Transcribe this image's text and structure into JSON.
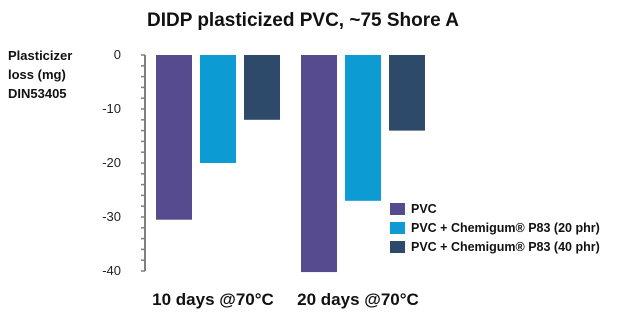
{
  "chart_data": {
    "type": "bar",
    "title": "DIDP plasticized PVC, ~75 Shore A",
    "ylabel_lines": [
      "Plasticizer",
      "loss (mg)",
      "DIN53405"
    ],
    "xlabel": "",
    "categories": [
      "10 days @70°C",
      "20 days @70°C"
    ],
    "series": [
      {
        "name": "PVC",
        "values": [
          -30.5,
          -40.2
        ],
        "color": "#574b8f"
      },
      {
        "name": "PVC + Chemigum® P83 (20 phr)",
        "values": [
          -20,
          -27
        ],
        "color": "#0d9bd3"
      },
      {
        "name": "PVC + Chemigum® P83 (40 phr)",
        "values": [
          -12,
          -14
        ],
        "color": "#2e4a6b"
      }
    ],
    "ylim": [
      -40,
      0
    ],
    "yticks": [
      0,
      -10,
      -20,
      -30,
      -40
    ],
    "legend_position": "bottom-right",
    "grid": false
  }
}
